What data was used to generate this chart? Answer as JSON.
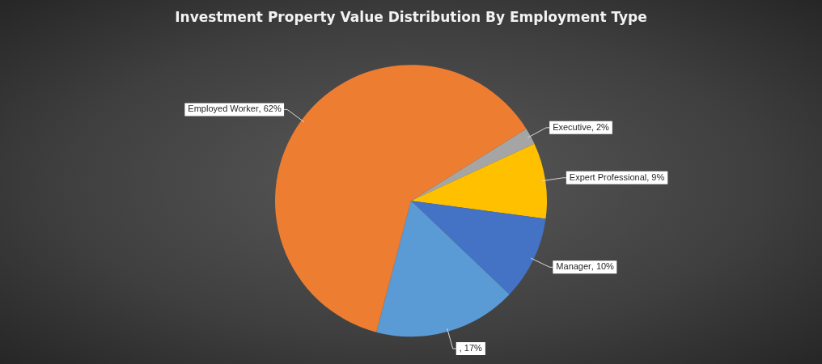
{
  "chart_data": {
    "type": "pie",
    "title": "Investment Property Value Distribution By Employment Type",
    "categories": [
      "Executive",
      "Expert Professional",
      "Manager",
      null,
      "Employed Worker"
    ],
    "values": [
      2,
      9,
      10,
      17,
      62
    ],
    "colors": [
      "#a5a5a5",
      "#ffc000",
      "#4472c4",
      "#5b9bd5",
      "#ed7d31"
    ],
    "value_labels": [
      ", 2%",
      ", 9%",
      ", 10%",
      ", 17%",
      ", 62%"
    ],
    "legend": false
  }
}
